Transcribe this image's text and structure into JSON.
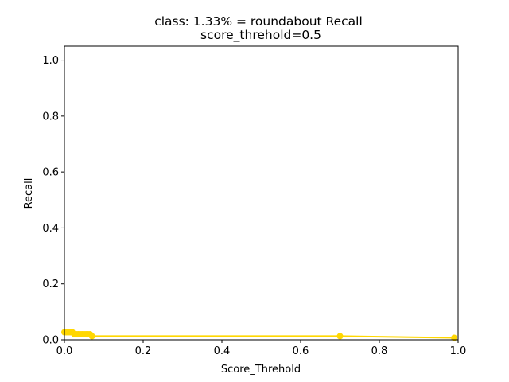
{
  "chart_data": {
    "type": "line",
    "title": "class: 1.33% = roundabout Recall",
    "subtitle": "score_threhold=0.5",
    "xlabel": "Score_Threhold",
    "ylabel": "Recall",
    "xlim": [
      0.0,
      1.0
    ],
    "ylim": [
      0.0,
      1.05
    ],
    "xticks": [
      "0.0",
      "0.2",
      "0.4",
      "0.6",
      "0.8",
      "1.0"
    ],
    "yticks": [
      "0.0",
      "0.2",
      "0.4",
      "0.6",
      "0.8",
      "1.0"
    ],
    "grid": false,
    "legend": "none",
    "series": [
      {
        "color": "#ffd700",
        "x": [
          0.0,
          0.005,
          0.01,
          0.015,
          0.02,
          0.025,
          0.03,
          0.035,
          0.04,
          0.045,
          0.05,
          0.055,
          0.06,
          0.065,
          0.07,
          0.7,
          0.99
        ],
        "y": [
          0.027,
          0.027,
          0.027,
          0.027,
          0.027,
          0.02,
          0.02,
          0.02,
          0.02,
          0.02,
          0.02,
          0.02,
          0.02,
          0.02,
          0.013,
          0.013,
          0.007
        ]
      }
    ]
  }
}
